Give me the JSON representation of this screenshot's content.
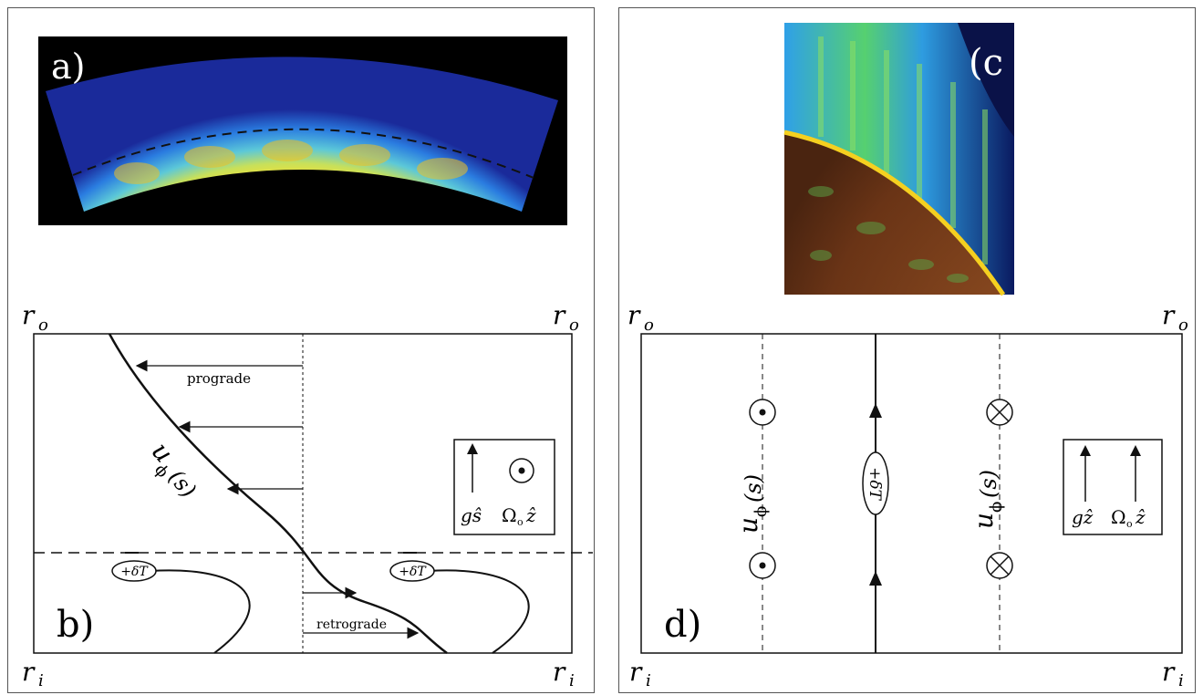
{
  "panel_a": {
    "label": "a)"
  },
  "panel_b": {
    "label": "b)",
    "r_outer": "r",
    "r_outer_sub": "o",
    "r_inner": "r",
    "r_inner_sub": "i",
    "prograde": "prograde",
    "retrograde": "retrograde",
    "u_phi_main": "u",
    "u_phi_sub": "ϕ",
    "u_phi_arg": "(s)",
    "delta_T": "+δT",
    "legend_g": "gŝ",
    "legend_omega": "Ω",
    "legend_omega_sub": "o",
    "legend_z": "ẑ"
  },
  "panel_c": {
    "label": "(c"
  },
  "panel_d": {
    "label": "d)",
    "r_outer": "r",
    "r_outer_sub": "o",
    "r_inner": "r",
    "r_inner_sub": "i",
    "u_phi_main": "u",
    "u_phi_sub": "ϕ",
    "u_phi_arg": "(s)",
    "delta_T": "+δT",
    "legend_g": "gẑ",
    "legend_omega": "Ω",
    "legend_omega_sub": "o",
    "legend_z": "ẑ"
  },
  "colors": {
    "deep_blue": "#0a1a6e",
    "cyan": "#3cb4e6",
    "yellow": "#f5dc28",
    "orange": "#f08c14",
    "ink": "#111111"
  }
}
